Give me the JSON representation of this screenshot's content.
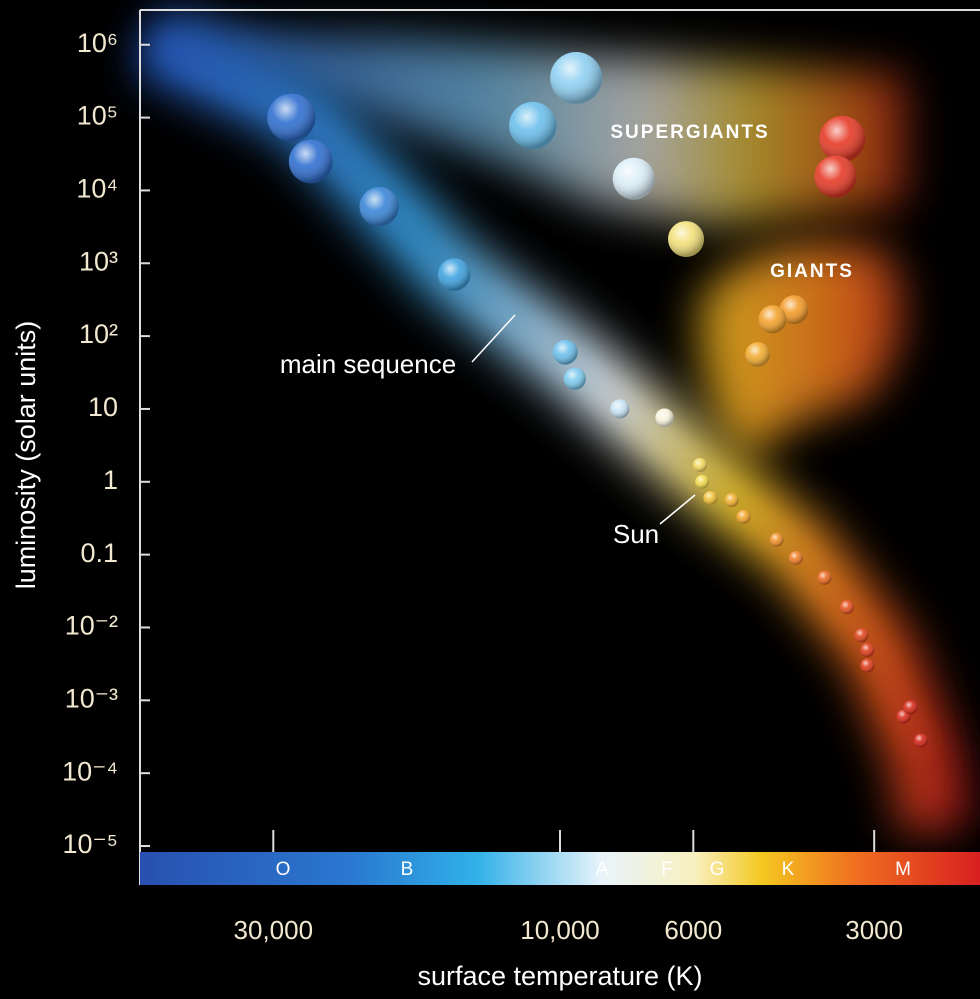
{
  "chart_data": {
    "type": "scatter",
    "x_scale": "log",
    "y_scale": "log",
    "xlabel": "surface temperature (K)",
    "ylabel": "luminosity (solar units)",
    "xlim": [
      50000,
      2000
    ],
    "ylim": [
      1e-05,
      3000000
    ],
    "xticks": [
      {
        "value": 30000,
        "label": "30,000"
      },
      {
        "value": 10000,
        "label": "10,000"
      },
      6000,
      3000
    ],
    "yticks": [
      {
        "value": 1000000,
        "label": "10⁶"
      },
      {
        "value": 100000,
        "label": "10⁵"
      },
      {
        "value": 10000,
        "label": "10⁴"
      },
      {
        "value": 1000,
        "label": "10³"
      },
      {
        "value": 100,
        "label": "10²"
      },
      10,
      1,
      0.1,
      {
        "value": 0.01,
        "label": "10⁻²"
      },
      {
        "value": 0.001,
        "label": "10⁻³"
      },
      {
        "value": 0.0001,
        "label": "10⁻⁴"
      },
      {
        "value": 1e-05,
        "label": "10⁻⁵"
      }
    ],
    "spectral_classes": [
      "O",
      "B",
      "A",
      "F",
      "G",
      "K",
      "M"
    ],
    "annotations": [
      "SUPERGIANTS",
      "GIANTS",
      "main sequence",
      "Sun"
    ],
    "x": [
      28000,
      26000,
      20000,
      15000,
      9800,
      9450,
      7950,
      6700,
      5850,
      5800,
      5620,
      5180,
      4950,
      4360,
      4050,
      3630,
      3330,
      3150,
      3080,
      3080,
      2680,
      2610,
      2510,
      9400,
      11100,
      7540,
      6170,
      3390,
      3480,
      4080,
      4430,
      4690
    ],
    "values": [
      100000,
      25000,
      6000,
      700,
      60,
      26,
      10,
      7.6,
      1.7,
      1,
      0.6,
      0.56,
      0.33,
      0.16,
      0.09,
      0.048,
      0.019,
      0.0078,
      0.0049,
      0.003,
      0.0006,
      0.0008,
      0.00028,
      350000,
      78000,
      14500,
      2150,
      51000,
      15500,
      230,
      170,
      56
    ],
    "colors": [
      "#2f6fd0",
      "#2f6fd0",
      "#3a86d8",
      "#3fa2e0",
      "#6cc0ec",
      "#7ccaee",
      "#c8e4f4",
      "#f6f3dc",
      "#f3d860",
      "#f1d84c",
      "#f0c23a",
      "#f0b030",
      "#f2a52a",
      "#ef8f28",
      "#ee7d26",
      "#ea6a22",
      "#e6521e",
      "#e0441c",
      "#de3c1c",
      "#de3c1c",
      "#d82a1a",
      "#d82a1a",
      "#d42418",
      "#8fd0f2",
      "#6cc0ec",
      "#dceef8",
      "#f3e07a",
      "#e63a26",
      "#e63a26",
      "#f49a28",
      "#f4a22c",
      "#f3ac30"
    ]
  }
}
